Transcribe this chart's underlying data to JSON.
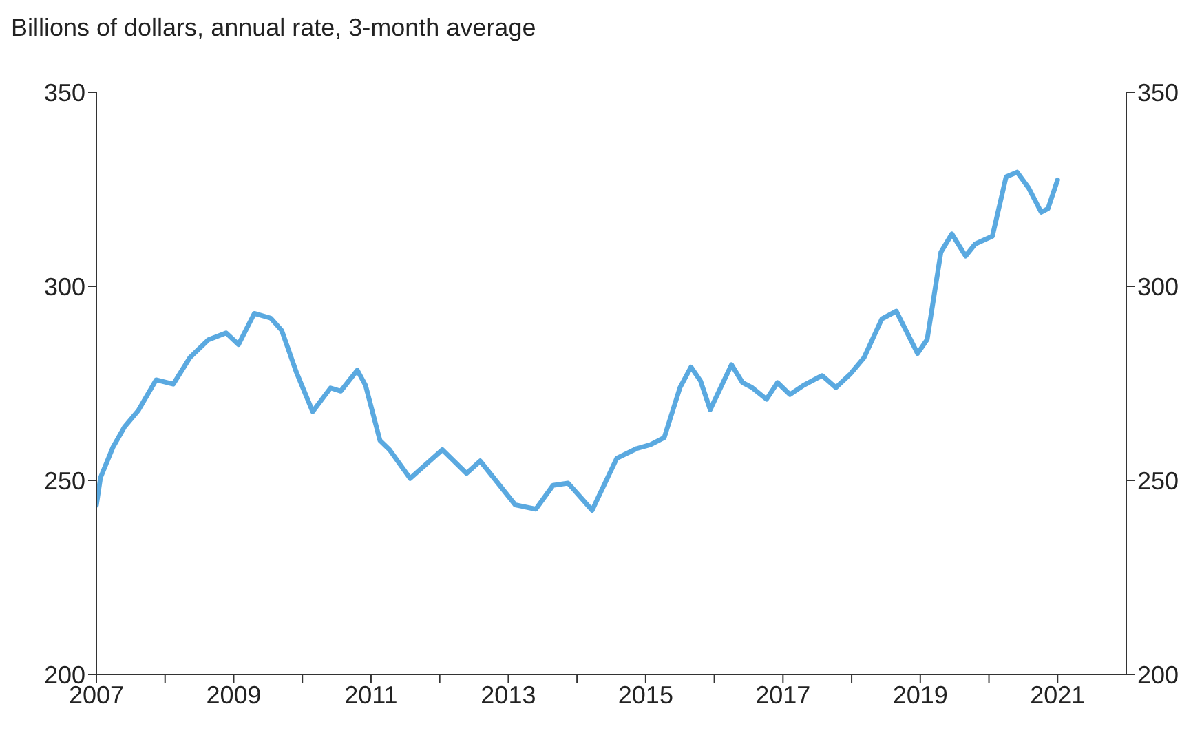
{
  "chart_data": {
    "type": "line",
    "ylabel": "Billions of dollars, annual rate, 3-month average",
    "x": [
      2007.0,
      2007.06,
      2007.24,
      2007.41,
      2007.61,
      2007.87,
      2008.12,
      2008.36,
      2008.63,
      2008.89,
      2009.07,
      2009.3,
      2009.54,
      2009.7,
      2009.91,
      2010.15,
      2010.41,
      2010.56,
      2010.8,
      2010.92,
      2011.13,
      2011.27,
      2011.57,
      2012.04,
      2012.39,
      2012.59,
      2013.1,
      2013.4,
      2013.65,
      2013.87,
      2014.22,
      2014.58,
      2014.87,
      2015.07,
      2015.27,
      2015.5,
      2015.66,
      2015.8,
      2015.94,
      2016.25,
      2016.41,
      2016.55,
      2016.76,
      2016.92,
      2017.1,
      2017.3,
      2017.57,
      2017.77,
      2017.98,
      2018.18,
      2018.44,
      2018.65,
      2018.96,
      2019.1,
      2019.3,
      2019.46,
      2019.66,
      2019.8,
      2020.05,
      2020.25,
      2020.41,
      2020.58,
      2020.76,
      2020.86,
      2021.0
    ],
    "series": [
      {
        "color": "#5aa9e0",
        "values": [
          243.6,
          250.7,
          258.5,
          263.8,
          268,
          275.9,
          274.8,
          281.6,
          286.2,
          288,
          285,
          293,
          291.8,
          288.6,
          278,
          267.7,
          273.8,
          273,
          278.4,
          274.5,
          260.3,
          257.9,
          250.5,
          257.9,
          251.8,
          255,
          243.7,
          242.6,
          248.7,
          249.3,
          242.3,
          255.7,
          258.2,
          259.2,
          261,
          273.9,
          279.2,
          275.6,
          268.2,
          279.8,
          275.2,
          273.9,
          270.9,
          275.2,
          272.1,
          274.5,
          277,
          273.9,
          277.4,
          281.6,
          291.6,
          293.6,
          282.7,
          286.3,
          308.8,
          313.5,
          307.8,
          310.9,
          312.9,
          328.2,
          329.4,
          325.3,
          319.1,
          320,
          327.4
        ]
      }
    ],
    "xlim": [
      2007,
      2022
    ],
    "xticks": [
      2007,
      {
        "value": 2008,
        "label": null
      },
      2009,
      {
        "value": 2010,
        "label": null
      },
      2011,
      {
        "value": 2012,
        "label": null
      },
      2013,
      {
        "value": 2014,
        "label": null
      },
      2015,
      {
        "value": 2016,
        "label": null
      },
      2017,
      {
        "value": 2018,
        "label": null
      },
      2019,
      {
        "value": 2020,
        "label": null
      },
      2021
    ],
    "ylim": [
      200,
      350
    ],
    "yticks": [
      200,
      250,
      300,
      350
    ],
    "y2lim": [
      200,
      350
    ],
    "y2ticks": [
      200,
      250,
      300,
      350
    ],
    "grid": false,
    "legend": false,
    "marker": "none",
    "line_style": "solid"
  }
}
